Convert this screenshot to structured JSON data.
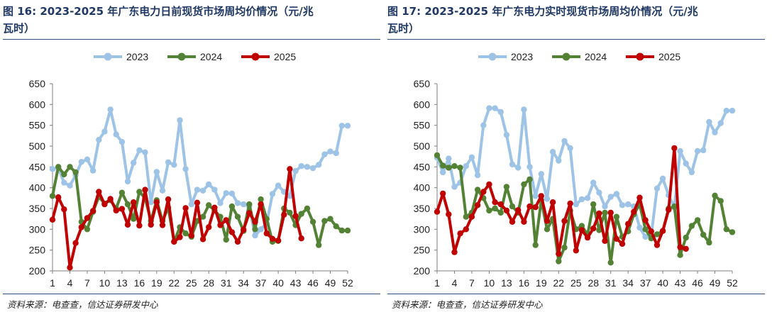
{
  "source_text": "资料来源：电查查，信达证券研发中心",
  "colors": {
    "s2023": "#9dc3e6",
    "s2024": "#548235",
    "s2025": "#c00000",
    "axis": "#7f7f7f"
  },
  "chart_data": [
    {
      "type": "line",
      "title_line1": "图 16:  2023-2025 年广东电力日前现货市场周均价情况（元/兆",
      "title_line2": "瓦时）",
      "xlabel": "",
      "ylabel": "",
      "ylim": [
        200,
        650
      ],
      "yticks": [
        200,
        250,
        300,
        350,
        400,
        450,
        500,
        550,
        600,
        650
      ],
      "xticks": [
        1,
        4,
        7,
        10,
        13,
        16,
        19,
        22,
        25,
        28,
        31,
        34,
        37,
        40,
        43,
        46,
        49,
        52
      ],
      "xlim": [
        1,
        52
      ],
      "grid": false,
      "legend_position": "top-center",
      "series": [
        {
          "name": "2023",
          "color": "#9dc3e6",
          "x": [
            1,
            2,
            3,
            4,
            5,
            6,
            7,
            8,
            9,
            10,
            11,
            12,
            13,
            14,
            15,
            16,
            17,
            18,
            19,
            20,
            21,
            22,
            23,
            24,
            25,
            26,
            27,
            28,
            29,
            30,
            31,
            32,
            33,
            34,
            35,
            36,
            37,
            38,
            39,
            40,
            41,
            42,
            43,
            44,
            45,
            46,
            47,
            48,
            49,
            50,
            51,
            52
          ],
          "values": [
            445,
            448,
            412,
            405,
            430,
            462,
            468,
            441,
            515,
            535,
            588,
            528,
            510,
            415,
            460,
            490,
            485,
            365,
            438,
            393,
            461,
            455,
            562,
            445,
            360,
            395,
            393,
            408,
            395,
            363,
            387,
            386,
            363,
            360,
            355,
            285,
            300,
            314,
            385,
            405,
            390,
            380,
            440,
            452,
            450,
            447,
            455,
            480,
            487,
            483,
            549,
            549
          ]
        },
        {
          "name": "2024",
          "color": "#548235",
          "x": [
            1,
            2,
            3,
            4,
            5,
            6,
            7,
            8,
            9,
            10,
            11,
            12,
            13,
            14,
            15,
            16,
            17,
            18,
            19,
            20,
            21,
            22,
            23,
            24,
            25,
            26,
            27,
            28,
            29,
            30,
            31,
            32,
            33,
            34,
            35,
            36,
            37,
            38,
            39,
            40,
            41,
            42,
            43,
            44,
            45,
            46,
            47,
            48,
            49,
            50,
            51,
            52
          ],
          "values": [
            380,
            450,
            432,
            450,
            437,
            318,
            300,
            342,
            378,
            362,
            370,
            350,
            388,
            360,
            325,
            390,
            375,
            320,
            370,
            320,
            352,
            270,
            305,
            290,
            282,
            320,
            330,
            358,
            345,
            330,
            275,
            355,
            330,
            296,
            360,
            300,
            372,
            325,
            270,
            272,
            350,
            340,
            310,
            337,
            350,
            318,
            262,
            320,
            325,
            307,
            297,
            297
          ]
        },
        {
          "name": "2025",
          "color": "#c00000",
          "x": [
            1,
            2,
            3,
            4,
            5,
            6,
            7,
            8,
            9,
            10,
            11,
            12,
            13,
            14,
            15,
            16,
            17,
            18,
            19,
            20,
            21,
            22,
            23,
            24,
            25,
            26,
            27,
            28,
            29,
            30,
            31,
            32,
            33,
            34,
            35,
            36,
            37,
            38,
            39,
            40,
            41,
            42,
            43,
            44
          ],
          "values": [
            323,
            377,
            348,
            208,
            267,
            305,
            327,
            344,
            390,
            360,
            373,
            345,
            349,
            311,
            365,
            309,
            395,
            311,
            365,
            310,
            372,
            270,
            281,
            351,
            285,
            364,
            276,
            305,
            352,
            310,
            322,
            293,
            270,
            299,
            339,
            318,
            360,
            290,
            277,
            273,
            335,
            445,
            332,
            278
          ]
        }
      ]
    },
    {
      "type": "line",
      "title_line1": "图 17:  2023-2025 年广东电力实时现货市场周均价情况（元/兆",
      "title_line2": "瓦时）",
      "xlabel": "",
      "ylabel": "",
      "ylim": [
        200,
        650
      ],
      "yticks": [
        200,
        250,
        300,
        350,
        400,
        450,
        500,
        550,
        600,
        650
      ],
      "xticks": [
        1,
        4,
        7,
        10,
        13,
        16,
        19,
        22,
        25,
        28,
        31,
        34,
        37,
        40,
        43,
        46,
        49,
        52
      ],
      "xlim": [
        1,
        52
      ],
      "grid": false,
      "legend_position": "top-center",
      "series": [
        {
          "name": "2023",
          "color": "#9dc3e6",
          "x": [
            1,
            2,
            3,
            4,
            5,
            6,
            7,
            8,
            9,
            10,
            11,
            12,
            13,
            14,
            15,
            16,
            17,
            18,
            19,
            20,
            21,
            22,
            23,
            24,
            25,
            26,
            27,
            28,
            29,
            30,
            31,
            32,
            33,
            34,
            35,
            36,
            37,
            38,
            39,
            40,
            41,
            42,
            43,
            44,
            45,
            46,
            47,
            48,
            49,
            50,
            51,
            52
          ],
          "values": [
            472,
            437,
            470,
            402,
            412,
            452,
            473,
            430,
            550,
            591,
            591,
            582,
            527,
            456,
            448,
            588,
            450,
            380,
            433,
            373,
            486,
            465,
            512,
            495,
            360,
            372,
            375,
            412,
            388,
            355,
            378,
            385,
            358,
            360,
            355,
            304,
            282,
            285,
            398,
            422,
            382,
            352,
            488,
            458,
            437,
            488,
            490,
            558,
            533,
            555,
            585,
            585
          ]
        },
        {
          "name": "2024",
          "color": "#548235",
          "x": [
            1,
            2,
            3,
            4,
            5,
            6,
            7,
            8,
            9,
            10,
            11,
            12,
            13,
            14,
            15,
            16,
            17,
            18,
            19,
            20,
            21,
            22,
            23,
            24,
            25,
            26,
            27,
            28,
            29,
            30,
            31,
            32,
            33,
            34,
            35,
            36,
            37,
            38,
            39,
            40,
            41,
            42,
            43,
            44,
            45,
            46,
            47,
            48,
            49,
            50,
            51,
            52
          ],
          "values": [
            478,
            453,
            448,
            452,
            448,
            330,
            340,
            395,
            375,
            345,
            350,
            340,
            402,
            355,
            340,
            408,
            420,
            262,
            370,
            300,
            325,
            223,
            256,
            345,
            300,
            308,
            287,
            360,
            298,
            340,
            220,
            330,
            282,
            295,
            336,
            360,
            300,
            278,
            288,
            296,
            350,
            355,
            238,
            280,
            308,
            322,
            287,
            268,
            381,
            368,
            300,
            293
          ]
        },
        {
          "name": "2025",
          "color": "#c00000",
          "x": [
            1,
            2,
            3,
            4,
            5,
            6,
            7,
            8,
            9,
            10,
            11,
            12,
            13,
            14,
            15,
            16,
            17,
            18,
            19,
            20,
            21,
            22,
            23,
            24,
            25,
            26,
            27,
            28,
            29,
            30,
            31,
            32,
            33,
            34,
            35,
            36,
            37,
            38,
            39,
            40,
            41,
            42,
            43,
            44
          ],
          "values": [
            342,
            386,
            336,
            245,
            290,
            300,
            330,
            358,
            390,
            408,
            365,
            360,
            345,
            318,
            346,
            318,
            355,
            353,
            380,
            320,
            365,
            241,
            320,
            362,
            249,
            298,
            280,
            302,
            338,
            272,
            340,
            277,
            265,
            313,
            342,
            376,
            322,
            295,
            262,
            296,
            347,
            495,
            257,
            253
          ]
        }
      ]
    }
  ]
}
